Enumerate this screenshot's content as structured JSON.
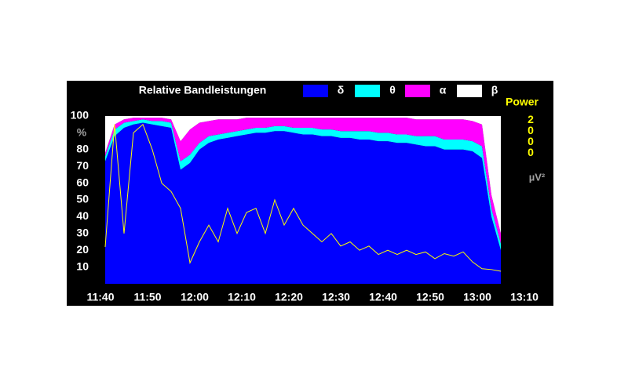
{
  "chart_data": {
    "type": "area",
    "stacked": true,
    "title": "Relative Bandleistungen",
    "y_label": "%",
    "y2_label": "Power",
    "y2_unit": "µV²",
    "x": [
      "11:41",
      "11:43",
      "11:45",
      "11:47",
      "11:49",
      "11:51",
      "11:53",
      "11:55",
      "11:57",
      "11:59",
      "12:01",
      "12:03",
      "12:05",
      "12:07",
      "12:09",
      "12:11",
      "12:13",
      "12:15",
      "12:17",
      "12:19",
      "12:21",
      "12:23",
      "12:25",
      "12:27",
      "12:29",
      "12:31",
      "12:33",
      "12:35",
      "12:37",
      "12:39",
      "12:41",
      "12:43",
      "12:45",
      "12:47",
      "12:49",
      "12:51",
      "12:53",
      "12:55",
      "12:57",
      "12:59",
      "13:01",
      "13:03",
      "13:05"
    ],
    "series": [
      {
        "name": "δ",
        "color": "#0000ff",
        "values": [
          73,
          88,
          93,
          95,
          96,
          95,
          94,
          93,
          68,
          72,
          80,
          84,
          86,
          87,
          88,
          89,
          90,
          90,
          91,
          91,
          90,
          89,
          89,
          88,
          88,
          87,
          87,
          86,
          86,
          85,
          85,
          84,
          84,
          83,
          82,
          82,
          80,
          80,
          80,
          79,
          75,
          40,
          20
        ]
      },
      {
        "name": "θ",
        "color": "#00ffff",
        "values": [
          3,
          4,
          3,
          2,
          2,
          2,
          3,
          3,
          5,
          5,
          4,
          4,
          3,
          3,
          3,
          3,
          3,
          3,
          3,
          3,
          3,
          4,
          4,
          4,
          4,
          4,
          4,
          5,
          5,
          5,
          5,
          5,
          5,
          5,
          6,
          6,
          6,
          6,
          6,
          6,
          7,
          5,
          4
        ]
      },
      {
        "name": "α",
        "color": "#ff00ff",
        "values": [
          2,
          3,
          2,
          2,
          1,
          2,
          2,
          2,
          12,
          15,
          12,
          9,
          9,
          8,
          7,
          7,
          6,
          6,
          5,
          5,
          6,
          6,
          6,
          7,
          7,
          8,
          8,
          8,
          8,
          9,
          9,
          10,
          10,
          10,
          10,
          10,
          12,
          12,
          12,
          12,
          13,
          8,
          6
        ]
      },
      {
        "name": "β",
        "color": "#ffffff",
        "values": [
          22,
          5,
          2,
          1,
          1,
          1,
          1,
          2,
          15,
          8,
          4,
          3,
          2,
          2,
          2,
          1,
          1,
          1,
          1,
          1,
          1,
          1,
          1,
          1,
          1,
          1,
          1,
          1,
          1,
          1,
          1,
          1,
          1,
          2,
          2,
          2,
          2,
          2,
          2,
          3,
          5,
          47,
          70
        ]
      }
    ],
    "power": {
      "color": "#ffff00",
      "axis": "y2",
      "values": [
        440,
        1900,
        600,
        1800,
        1900,
        1600,
        1200,
        1100,
        900,
        250,
        500,
        700,
        500,
        900,
        600,
        850,
        900,
        600,
        1000,
        700,
        900,
        700,
        600,
        500,
        600,
        450,
        500,
        400,
        450,
        350,
        400,
        350,
        400,
        350,
        380,
        300,
        360,
        330,
        380,
        260,
        180,
        170,
        150
      ]
    },
    "xlim": [
      "11:40",
      "13:10"
    ],
    "xticks": [
      "11:40",
      "11:50",
      "12:00",
      "12:10",
      "12:20",
      "12:30",
      "12:40",
      "12:50",
      "13:00",
      "13:10"
    ],
    "ylim": [
      0,
      100
    ],
    "yticks": [
      10,
      20,
      30,
      40,
      50,
      60,
      70,
      80,
      100
    ],
    "y2lim": [
      0,
      2000
    ],
    "y2ticks": [
      2000
    ],
    "grid": false
  }
}
